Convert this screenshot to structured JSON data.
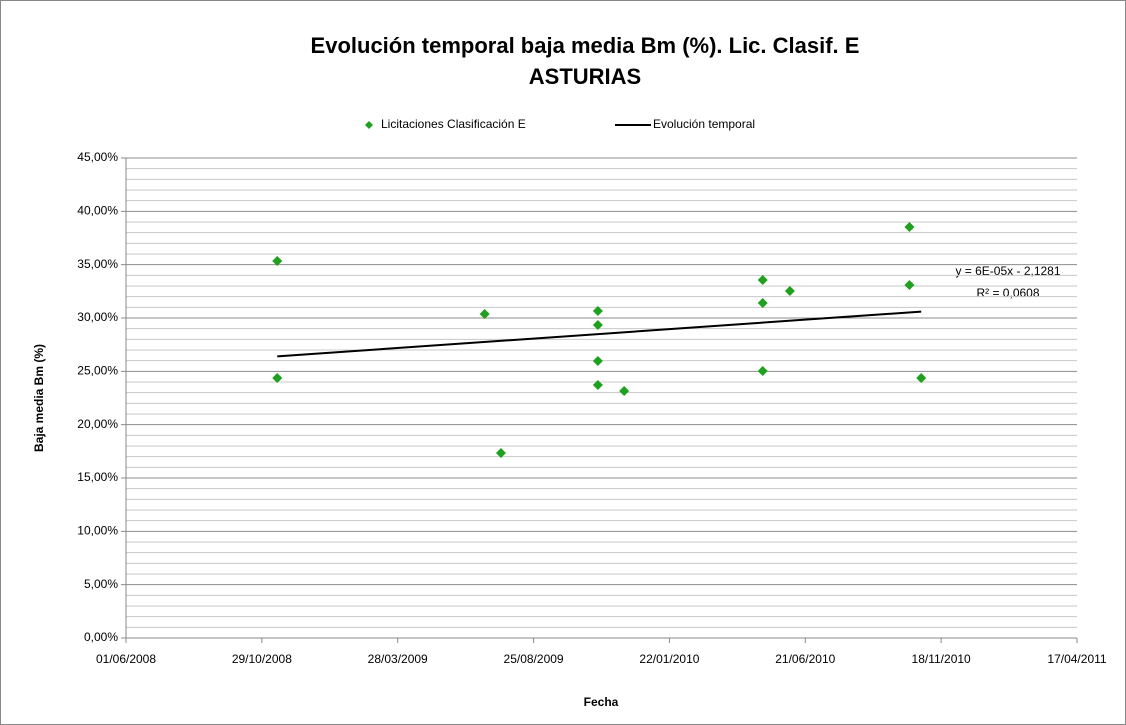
{
  "chart_data": {
    "type": "scatter",
    "title": [
      "Evolución temporal baja media Bm (%). Lic. Clasif. E",
      "ASTURIAS"
    ],
    "x_label": "Fecha",
    "y_label": "Baja media Bm (%)",
    "annotation": [
      "y = 6E-05x - 2,1281",
      "R² = 0,0608"
    ],
    "series": [
      {
        "name": "Licitaciones Clasificación E",
        "color": "#1fa01f",
        "type": "scatter",
        "x": [
          39767,
          39767,
          39996,
          40014,
          40121,
          40121,
          40121,
          40121,
          40150,
          40303,
          40303,
          40303,
          40333,
          40465,
          40465,
          40478
        ],
        "values": [
          35.34,
          24.37,
          30.37,
          17.34,
          30.66,
          29.34,
          25.97,
          23.72,
          23.16,
          33.56,
          31.41,
          25.03,
          32.53,
          38.53,
          33.09,
          24.37
        ]
      },
      {
        "name": "Evolución temporal",
        "color": "#000000",
        "type": "line",
        "x": [
          39767,
          40478
        ],
        "values": [
          26.4,
          30.6
        ]
      }
    ],
    "xlim": [
      39600,
      40650
    ],
    "xticks": [
      {
        "value": 39600,
        "label": "01/06/2008"
      },
      {
        "value": 39750,
        "label": "29/10/2008"
      },
      {
        "value": 39900,
        "label": "28/03/2009"
      },
      {
        "value": 40050,
        "label": "25/08/2009"
      },
      {
        "value": 40200,
        "label": "22/01/2010"
      },
      {
        "value": 40350,
        "label": "21/06/2010"
      },
      {
        "value": 40500,
        "label": "18/11/2010"
      },
      {
        "value": 40650,
        "label": "17/04/2011"
      }
    ],
    "ylim": [
      0,
      45
    ],
    "yticks": [
      {
        "value": 0,
        "label": "0,00%"
      },
      {
        "value": 5,
        "label": "5,00%"
      },
      {
        "value": 10,
        "label": "10,00%"
      },
      {
        "value": 15,
        "label": "15,00%"
      },
      {
        "value": 20,
        "label": "20,00%"
      },
      {
        "value": 25,
        "label": "25,00%"
      },
      {
        "value": 30,
        "label": "30,00%"
      },
      {
        "value": 35,
        "label": "35,00%"
      },
      {
        "value": 40,
        "label": "40,00%"
      },
      {
        "value": 45,
        "label": "45,00%"
      }
    ],
    "grid": true,
    "minor_grid_per_interval": 5,
    "legend": "top"
  }
}
